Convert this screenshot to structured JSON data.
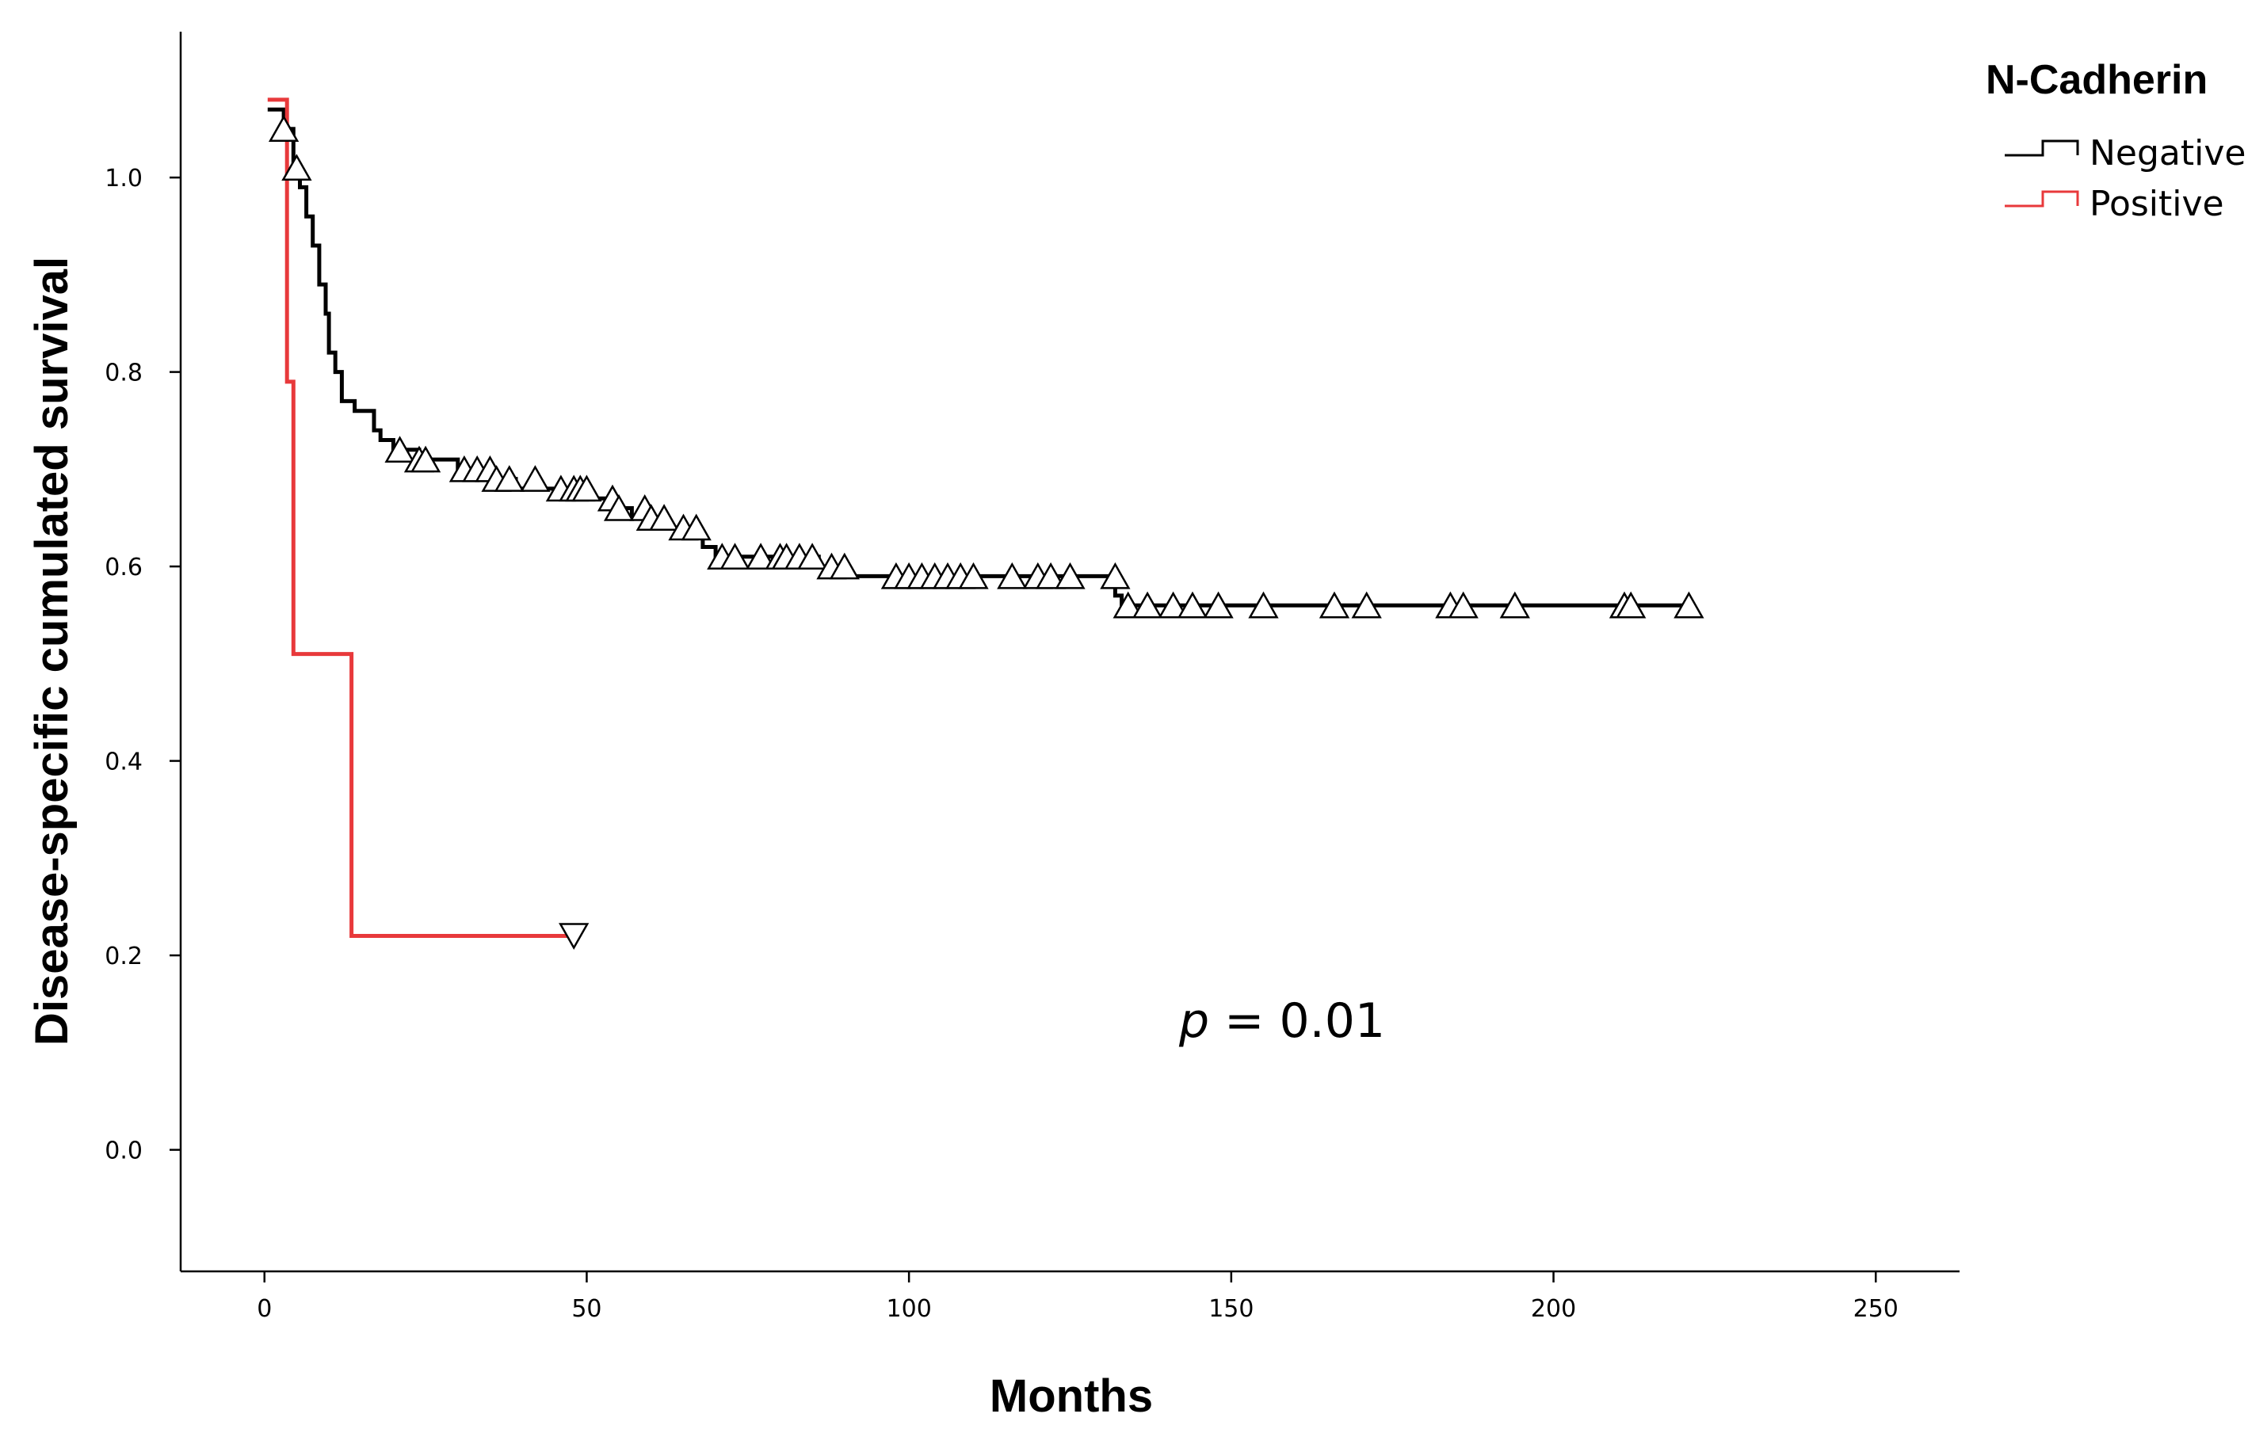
{
  "chart_data": {
    "type": "line",
    "subtype": "kaplan-meier",
    "xlabel": "Months",
    "ylabel": "Disease-specific cumulated survival",
    "xlim": [
      -13,
      263
    ],
    "ylim": [
      -0.125,
      1.15
    ],
    "xticks": [
      0,
      50,
      100,
      150,
      200,
      250
    ],
    "xtick_labels": [
      "0",
      "50",
      "100",
      "150",
      "200",
      "250"
    ],
    "yticks": [
      0.0,
      0.2,
      0.4,
      0.6,
      0.8,
      1.0
    ],
    "ytick_labels": [
      "0.0",
      "0.2",
      "0.4",
      "0.6",
      "0.8",
      "1.0"
    ],
    "grid": false,
    "legend": {
      "title": "N-Cadherin",
      "placement": "top-right",
      "entries": [
        "Negative",
        "Positive"
      ]
    },
    "annotation": {
      "italic": "p",
      "rest": " = 0.01"
    },
    "series": [
      {
        "name": "Negative",
        "color": "#000000",
        "censor_marker": "triangle-up",
        "steps": [
          [
            0.5,
            1.07
          ],
          [
            3,
            1.05
          ],
          [
            4.5,
            1.01
          ],
          [
            5.5,
            0.99
          ],
          [
            6.5,
            0.96
          ],
          [
            7.5,
            0.93
          ],
          [
            8.5,
            0.89
          ],
          [
            9.5,
            0.86
          ],
          [
            10,
            0.82
          ],
          [
            11,
            0.8
          ],
          [
            12,
            0.77
          ],
          [
            14,
            0.76
          ],
          [
            17,
            0.74
          ],
          [
            18,
            0.73
          ],
          [
            20,
            0.72
          ],
          [
            24,
            0.71
          ],
          [
            30,
            0.7
          ],
          [
            34,
            0.69
          ],
          [
            39,
            0.68
          ],
          [
            45,
            0.67
          ],
          [
            53,
            0.66
          ],
          [
            57,
            0.65
          ],
          [
            60,
            0.64
          ],
          [
            64,
            0.63
          ],
          [
            68,
            0.62
          ],
          [
            70,
            0.61
          ],
          [
            86,
            0.6
          ],
          [
            89,
            0.59
          ],
          [
            132,
            0.57
          ],
          [
            133,
            0.56
          ],
          [
            222,
            0.56
          ]
        ],
        "censored": [
          [
            3,
            1.05
          ],
          [
            5,
            1.01
          ],
          [
            21,
            0.72
          ],
          [
            24,
            0.71
          ],
          [
            25,
            0.71
          ],
          [
            31,
            0.7
          ],
          [
            33,
            0.7
          ],
          [
            35,
            0.7
          ],
          [
            36,
            0.69
          ],
          [
            38,
            0.69
          ],
          [
            42,
            0.69
          ],
          [
            46,
            0.68
          ],
          [
            48,
            0.68
          ],
          [
            49,
            0.68
          ],
          [
            50,
            0.68
          ],
          [
            54,
            0.67
          ],
          [
            55,
            0.66
          ],
          [
            59,
            0.66
          ],
          [
            60,
            0.65
          ],
          [
            62,
            0.65
          ],
          [
            65,
            0.64
          ],
          [
            67,
            0.64
          ],
          [
            71,
            0.61
          ],
          [
            73,
            0.61
          ],
          [
            77,
            0.61
          ],
          [
            80,
            0.61
          ],
          [
            81,
            0.61
          ],
          [
            83,
            0.61
          ],
          [
            85,
            0.61
          ],
          [
            88,
            0.6
          ],
          [
            90,
            0.6
          ],
          [
            98,
            0.59
          ],
          [
            100,
            0.59
          ],
          [
            102,
            0.59
          ],
          [
            104,
            0.59
          ],
          [
            106,
            0.59
          ],
          [
            108,
            0.59
          ],
          [
            110,
            0.59
          ],
          [
            116,
            0.59
          ],
          [
            120,
            0.59
          ],
          [
            122,
            0.59
          ],
          [
            125,
            0.59
          ],
          [
            132,
            0.59
          ],
          [
            134,
            0.56
          ],
          [
            137,
            0.56
          ],
          [
            141,
            0.56
          ],
          [
            144,
            0.56
          ],
          [
            148,
            0.56
          ],
          [
            155,
            0.56
          ],
          [
            166,
            0.56
          ],
          [
            171,
            0.56
          ],
          [
            184,
            0.56
          ],
          [
            186,
            0.56
          ],
          [
            194,
            0.56
          ],
          [
            211,
            0.56
          ],
          [
            212,
            0.56
          ],
          [
            221,
            0.56
          ]
        ]
      },
      {
        "name": "Positive",
        "color": "#e8393b",
        "censor_marker": "triangle-down",
        "steps": [
          [
            0.5,
            1.08
          ],
          [
            3.5,
            0.79
          ],
          [
            4.5,
            0.51
          ],
          [
            13.5,
            0.22
          ],
          [
            48,
            0.22
          ]
        ],
        "censored": [
          [
            48,
            0.22
          ]
        ]
      }
    ]
  }
}
